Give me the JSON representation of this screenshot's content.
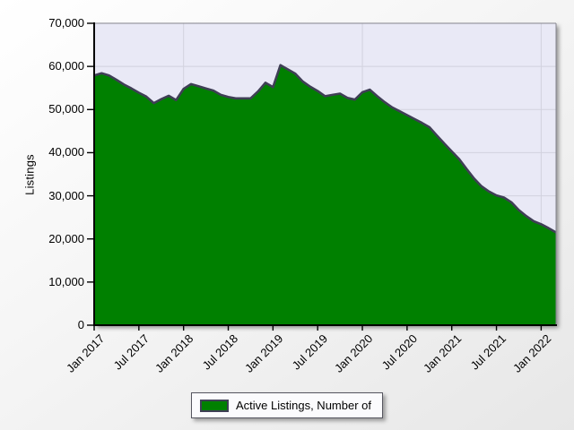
{
  "figure": {
    "y_axis_title": "Listings",
    "legend": {
      "label": "Active Listings, Number of",
      "swatch_color": "#008000"
    },
    "colors": {
      "area_fill": "#008000",
      "area_edge": "#3f3f55",
      "plot_background": "#e9e9f6",
      "gridline": "#d2d2de",
      "axis": "#000000",
      "frame": "#85858f"
    }
  },
  "chart_data": {
    "type": "area",
    "title": "",
    "xlabel": "",
    "ylabel": "Listings",
    "ylim": [
      0,
      70000
    ],
    "grid": "on",
    "legend_position": "bottom-center",
    "y_ticks": [
      0,
      10000,
      20000,
      30000,
      40000,
      50000,
      60000,
      70000
    ],
    "y_tick_labels": [
      "0",
      "10,000",
      "20,000",
      "30,000",
      "40,000",
      "50,000",
      "60,000",
      "70,000"
    ],
    "x_tick_labels": [
      "Jan 2017",
      "Jul 2017",
      "Jan 2018",
      "Jul 2018",
      "Jan 2019",
      "Jul 2019",
      "Jan 2020",
      "Jul 2020",
      "Jan 2021",
      "Jul 2021",
      "Jan 2022"
    ],
    "x_tick_indices": [
      0,
      6,
      12,
      18,
      24,
      30,
      36,
      42,
      48,
      54,
      60
    ],
    "v_gridline_indices": [
      12,
      36,
      60
    ],
    "x": [
      "Jan 2017",
      "Feb 2017",
      "Mar 2017",
      "Apr 2017",
      "May 2017",
      "Jun 2017",
      "Jul 2017",
      "Aug 2017",
      "Sep 2017",
      "Oct 2017",
      "Nov 2017",
      "Dec 2017",
      "Jan 2018",
      "Feb 2018",
      "Mar 2018",
      "Apr 2018",
      "May 2018",
      "Jun 2018",
      "Jul 2018",
      "Aug 2018",
      "Sep 2018",
      "Oct 2018",
      "Nov 2018",
      "Dec 2018",
      "Jan 2019",
      "Feb 2019",
      "Mar 2019",
      "Apr 2019",
      "May 2019",
      "Jun 2019",
      "Jul 2019",
      "Aug 2019",
      "Sep 2019",
      "Oct 2019",
      "Nov 2019",
      "Dec 2019",
      "Jan 2020",
      "Feb 2020",
      "Mar 2020",
      "Apr 2020",
      "May 2020",
      "Jun 2020",
      "Jul 2020",
      "Aug 2020",
      "Sep 2020",
      "Oct 2020",
      "Nov 2020",
      "Dec 2020",
      "Jan 2021",
      "Feb 2021",
      "Mar 2021",
      "Apr 2021",
      "May 2021",
      "Jun 2021",
      "Jul 2021",
      "Aug 2021",
      "Sep 2021",
      "Oct 2021",
      "Nov 2021",
      "Dec 2021",
      "Jan 2022",
      "Feb 2022",
      "Mar 2022"
    ],
    "series": [
      {
        "name": "Active Listings, Number of",
        "color": "#008000",
        "values": [
          57900,
          58400,
          57900,
          56900,
          55800,
          54900,
          53900,
          53000,
          51500,
          52400,
          53200,
          52200,
          54800,
          55900,
          55400,
          54900,
          54400,
          53400,
          52900,
          52600,
          52600,
          52600,
          54200,
          56200,
          55200,
          60300,
          59300,
          58300,
          56500,
          55300,
          54300,
          53100,
          53400,
          53700,
          52700,
          52300,
          54000,
          54600,
          53100,
          51700,
          50500,
          49600,
          48700,
          47800,
          46900,
          45900,
          44000,
          42100,
          40300,
          38500,
          36200,
          34000,
          32200,
          31000,
          30100,
          29600,
          28500,
          26700,
          25300,
          24100,
          23400,
          22500,
          21500
        ]
      }
    ]
  }
}
